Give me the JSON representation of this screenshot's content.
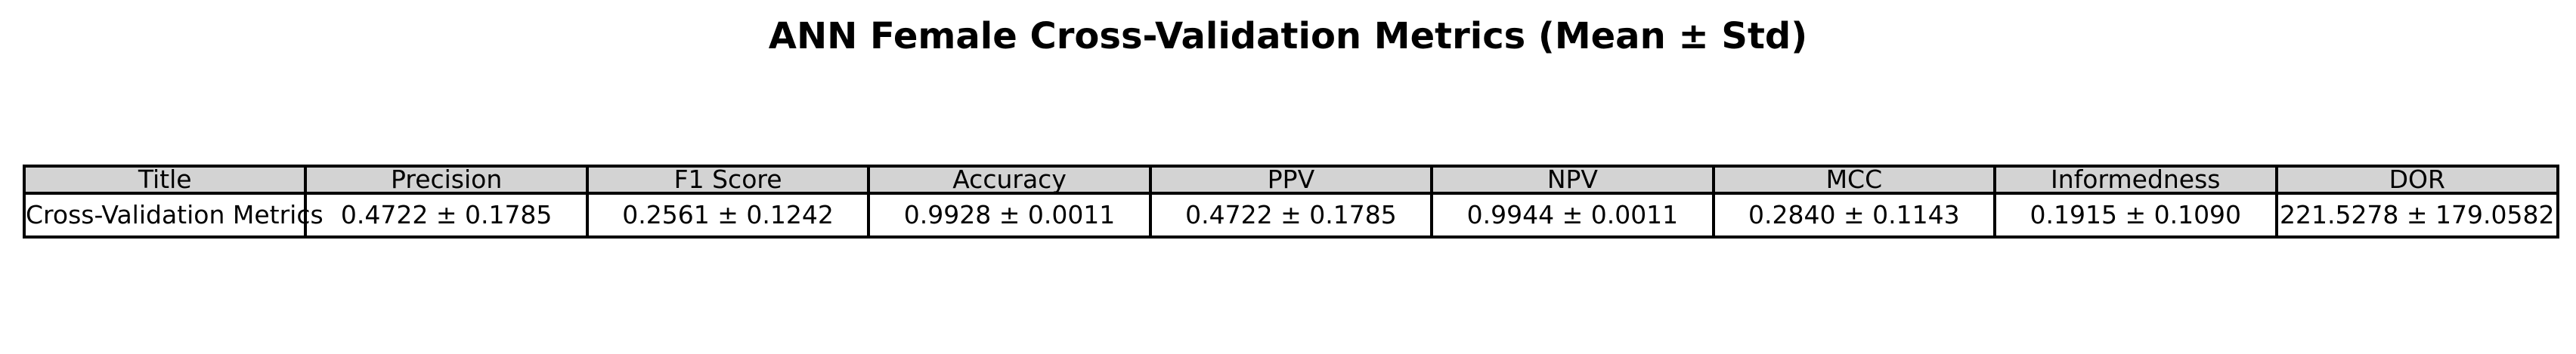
{
  "chart_data": {
    "type": "table",
    "title": "ANN Female Cross-Validation Metrics (Mean ± Std)",
    "columns": [
      "Title",
      "Precision",
      "F1 Score",
      "Accuracy",
      "PPV",
      "NPV",
      "MCC",
      "Informedness",
      "DOR"
    ],
    "rows": [
      [
        "Cross-Validation Metrics",
        "0.4722 ± 0.1785",
        "0.2561 ± 0.1242",
        "0.9928 ± 0.0011",
        "0.4722 ± 0.1785",
        "0.9944 ± 0.0011",
        "0.2840 ± 0.1143",
        "0.1915 ± 0.1090",
        "221.5278 ± 179.0582"
      ]
    ],
    "header_background": "#d3d3d3",
    "cell_background": "#ffffff",
    "border_color": "#000000"
  }
}
